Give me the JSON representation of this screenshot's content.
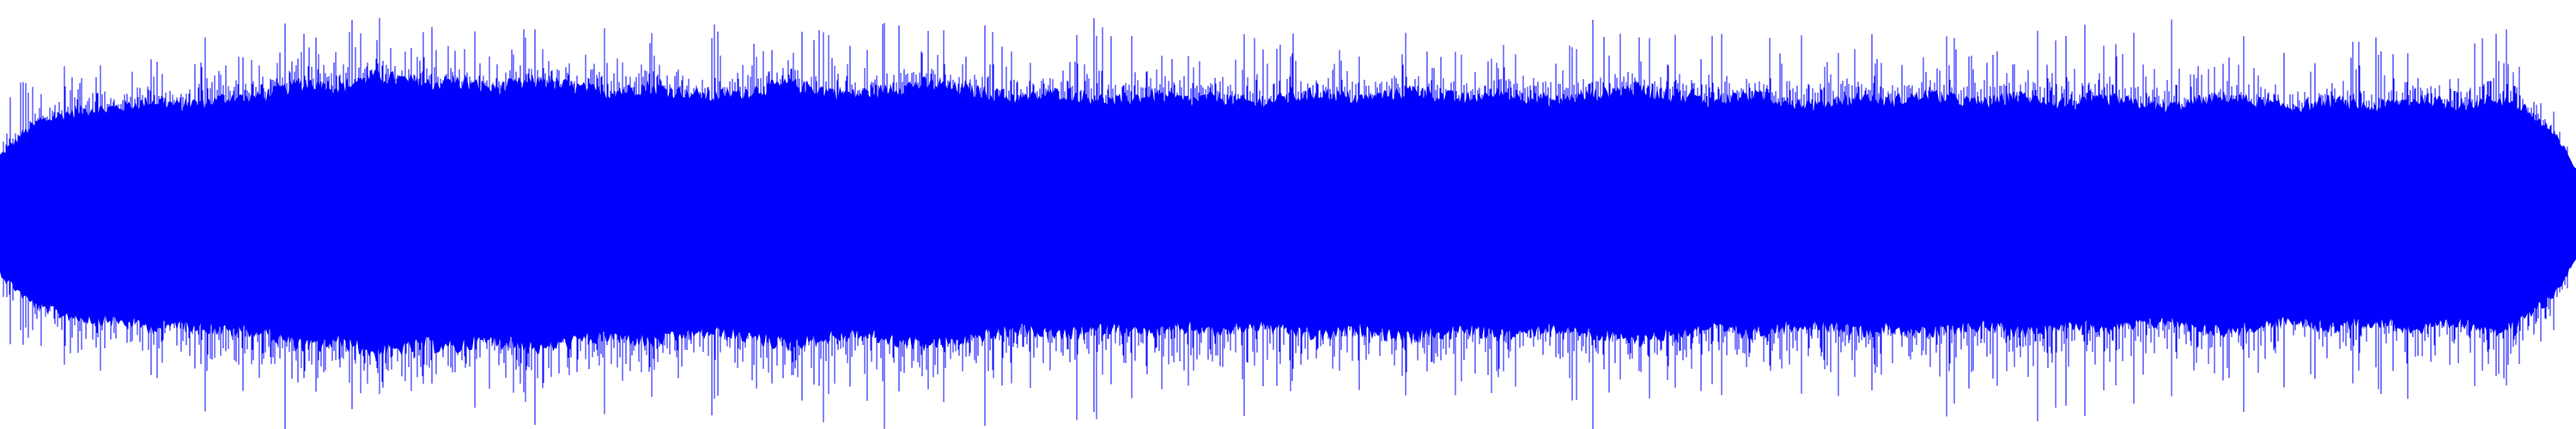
{
  "waveform": {
    "color": "#0000ff",
    "background": "#ffffff",
    "amplitude_max": 1.0,
    "envelope": {
      "description_free": true,
      "samples": [
        0.28,
        0.34,
        0.4,
        0.44,
        0.46,
        0.48,
        0.49,
        0.5,
        0.5,
        0.51,
        0.52,
        0.53,
        0.54,
        0.53,
        0.52,
        0.53,
        0.54,
        0.55,
        0.56,
        0.55,
        0.56,
        0.58,
        0.6,
        0.62,
        0.63,
        0.62,
        0.61,
        0.62,
        0.64,
        0.66,
        0.65,
        0.64,
        0.63,
        0.62,
        0.63,
        0.64,
        0.62,
        0.61,
        0.6,
        0.61,
        0.62,
        0.63,
        0.64,
        0.62,
        0.61,
        0.6,
        0.59,
        0.58,
        0.59,
        0.6,
        0.61,
        0.6,
        0.59,
        0.58,
        0.57,
        0.56,
        0.57,
        0.58,
        0.59,
        0.6,
        0.61,
        0.62,
        0.61,
        0.6,
        0.59,
        0.58,
        0.57,
        0.58,
        0.59,
        0.6,
        0.61,
        0.62,
        0.62,
        0.61,
        0.6,
        0.59,
        0.58,
        0.57,
        0.56,
        0.55,
        0.56,
        0.57,
        0.58,
        0.57,
        0.56,
        0.55,
        0.54,
        0.55,
        0.56,
        0.57,
        0.56,
        0.55,
        0.54,
        0.55,
        0.56,
        0.55,
        0.54,
        0.53,
        0.54,
        0.55,
        0.56,
        0.57,
        0.58,
        0.57,
        0.56,
        0.55,
        0.56,
        0.57,
        0.58,
        0.59,
        0.58,
        0.57,
        0.56,
        0.55,
        0.56,
        0.57,
        0.58,
        0.57,
        0.56,
        0.55,
        0.54,
        0.55,
        0.56,
        0.57,
        0.58,
        0.59,
        0.6,
        0.59,
        0.58,
        0.57,
        0.56,
        0.55,
        0.54,
        0.55,
        0.56,
        0.57,
        0.56,
        0.55,
        0.54,
        0.53,
        0.52,
        0.53,
        0.54,
        0.55,
        0.56,
        0.55,
        0.54,
        0.55,
        0.56,
        0.57,
        0.56,
        0.55,
        0.54,
        0.53,
        0.54,
        0.55,
        0.56,
        0.55,
        0.54,
        0.53,
        0.52,
        0.53,
        0.54,
        0.55,
        0.54,
        0.53,
        0.52,
        0.51,
        0.52,
        0.53,
        0.54,
        0.55,
        0.56,
        0.55,
        0.54,
        0.53,
        0.52,
        0.51,
        0.52,
        0.53,
        0.54,
        0.53,
        0.52,
        0.51,
        0.52,
        0.53,
        0.54,
        0.55,
        0.54,
        0.53,
        0.52,
        0.53,
        0.54,
        0.55,
        0.54,
        0.5,
        0.45,
        0.4,
        0.32,
        0.22
      ]
    },
    "peaks": {
      "samples": [
        0.35,
        0.62,
        0.66,
        0.7,
        0.72,
        0.88,
        0.78,
        0.74,
        0.9,
        0.76,
        0.8,
        0.86,
        0.92,
        0.78,
        0.74,
        0.84,
        0.96,
        0.8,
        0.88,
        0.94,
        0.82,
        0.9,
        0.96,
        0.86,
        0.98,
        0.84,
        0.92,
        0.96,
        0.88,
        0.94,
        0.98,
        0.9,
        0.86,
        0.94,
        0.99,
        0.88,
        0.92,
        0.96,
        0.84,
        0.9,
        0.96,
        0.88,
        0.92,
        0.98,
        0.86,
        0.9,
        0.94,
        0.88,
        0.84,
        0.92,
        0.96,
        0.9,
        0.86,
        0.94,
        0.88,
        0.92,
        0.98,
        0.86,
        0.9,
        0.96,
        0.88,
        0.94,
        0.9,
        0.86,
        0.92,
        0.96,
        0.88,
        0.84,
        0.9,
        0.94,
        0.98,
        0.86,
        0.92,
        0.88,
        0.84,
        0.9,
        0.96,
        0.88,
        0.92,
        0.86,
        0.9,
        0.94,
        0.88,
        0.84,
        0.92,
        0.96,
        0.86,
        0.9,
        0.88,
        0.94,
        0.9,
        0.86,
        0.92,
        0.88,
        0.96,
        0.84,
        0.9,
        0.94,
        0.86,
        0.92,
        0.96,
        0.88,
        0.9,
        0.94,
        0.86,
        0.92,
        0.88,
        0.96,
        0.9,
        0.86,
        0.94,
        0.88,
        0.92,
        0.96,
        0.86,
        0.9,
        0.94,
        0.88,
        0.84,
        0.92,
        0.96,
        0.86,
        0.9,
        0.94,
        0.88,
        0.92,
        0.96,
        0.84,
        0.9,
        0.88,
        0.94,
        0.9,
        0.86,
        0.92,
        0.96,
        0.88,
        0.84,
        0.9,
        0.94,
        0.86,
        0.92,
        0.88,
        0.96,
        0.9,
        0.86,
        0.94,
        0.88,
        0.92,
        0.84,
        0.9,
        0.96,
        0.86,
        0.9,
        0.94,
        0.88,
        0.84,
        0.92,
        0.96,
        0.86,
        0.9,
        0.88,
        0.94,
        0.9,
        0.86,
        0.92,
        0.88,
        0.84,
        0.9,
        0.94,
        0.86,
        0.92,
        0.88,
        0.84,
        0.9,
        0.86,
        0.82,
        0.88,
        0.84,
        0.8,
        0.86,
        0.82,
        0.78,
        0.84,
        0.92,
        0.8,
        0.86,
        0.96,
        0.82,
        0.88,
        0.84,
        0.8,
        0.86,
        0.92,
        0.9,
        0.96,
        0.7,
        0.62,
        0.55,
        0.42,
        0.28
      ]
    }
  }
}
